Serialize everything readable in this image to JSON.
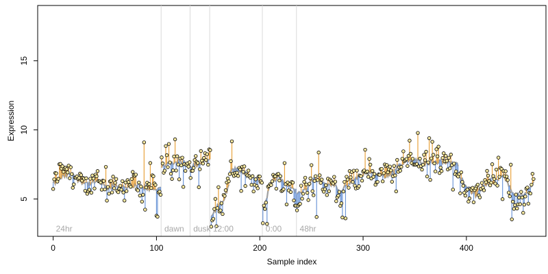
{
  "chart_data": {
    "type": "line",
    "title": "",
    "xlabel": "Sample index",
    "ylabel": "Expression",
    "xlim": [
      -15,
      477
    ],
    "ylim": [
      2.3,
      19.0
    ],
    "x_ticks": [
      0,
      100,
      200,
      300,
      400
    ],
    "y_ticks": [
      5,
      10,
      15
    ],
    "grid": false,
    "legend": "none",
    "colors": {
      "fit_line": "#a0a0a0",
      "residual_above": "#e8a33d",
      "residual_below": "#6f98d8",
      "point_fill": "#f6e8a0",
      "point_edge": "#000000",
      "divider": "#d9d9d9",
      "region_label": "#a8a8a8",
      "axis": "#000000"
    },
    "regions": [
      {
        "label": "24hr",
        "start": 0
      },
      {
        "label": "dawn",
        "start": 105
      },
      {
        "label": "dusk",
        "start": 133
      },
      {
        "label": "12:00",
        "start": 152
      },
      {
        "label": "0:00",
        "start": 203
      },
      {
        "label": "48hr",
        "start": 236
      }
    ],
    "segments": [
      {
        "x0": 0,
        "x1": 104,
        "fit": [
          6.1,
          6.6,
          6.8,
          6.3,
          6.1,
          6.3,
          5.8,
          6.0,
          5.9,
          6.0,
          5.9,
          5.7,
          5.7
        ],
        "obs": [
          6.0,
          7.5,
          7.0,
          6.2,
          5.9,
          6.8,
          5.4,
          6.2,
          5.5,
          6.5,
          5.3,
          6.2,
          5.1
        ]
      },
      {
        "x0": 105,
        "x1": 152,
        "fit": [
          7.4,
          7.6,
          7.8,
          7.3,
          7.6,
          7.9
        ],
        "obs": [
          7.6,
          7.4,
          8.1,
          7.0,
          7.9,
          8.2
        ]
      },
      {
        "x0": 153,
        "x1": 170,
        "fit": [
          3.9,
          4.4,
          4.8,
          6.0
        ],
        "obs": [
          3.5,
          4.2,
          4.6,
          6.4
        ]
      },
      {
        "x0": 171,
        "x1": 202,
        "fit": [
          7.0,
          7.2,
          6.8,
          6.5,
          6.2
        ],
        "obs": [
          7.2,
          7.0,
          6.6,
          6.0,
          6.8
        ]
      },
      {
        "x0": 203,
        "x1": 235,
        "fit": [
          4.2,
          6.2,
          6.6,
          6.0,
          5.6
        ],
        "obs": [
          3.8,
          6.6,
          6.3,
          6.2,
          5.2
        ]
      },
      {
        "x0": 236,
        "x1": 285,
        "fit": [
          5.3,
          5.6,
          6.3,
          6.5,
          5.9,
          6.2,
          5.5,
          6.0
        ],
        "obs": [
          4.8,
          6.0,
          6.0,
          6.8,
          5.6,
          6.4,
          5.1,
          6.4
        ]
      },
      {
        "x0": 286,
        "x1": 330,
        "fit": [
          6.1,
          6.6,
          6.9,
          6.8,
          6.7,
          6.9
        ],
        "obs": [
          6.4,
          6.4,
          7.1,
          6.6,
          6.9,
          6.8
        ]
      },
      {
        "x0": 331,
        "x1": 392,
        "fit": [
          7.2,
          7.7,
          7.8,
          7.6,
          7.7,
          7.6,
          7.5
        ],
        "obs": [
          7.4,
          7.9,
          7.6,
          7.8,
          7.5,
          7.8,
          7.3
        ]
      },
      {
        "x0": 393,
        "x1": 425,
        "fit": [
          6.8,
          5.8,
          5.3,
          6.0,
          6.4
        ],
        "obs": [
          6.6,
          5.5,
          5.1,
          6.2,
          6.7
        ]
      },
      {
        "x0": 426,
        "x1": 465,
        "fit": [
          6.2,
          6.7,
          5.3,
          5.2,
          6.2
        ],
        "obs": [
          6.5,
          6.9,
          4.9,
          4.8,
          6.4
        ]
      }
    ],
    "outliers": [
      {
        "x": 88,
        "y": 9.1
      },
      {
        "x": 153,
        "y": 3.0
      },
      {
        "x": 207,
        "y": 3.2
      },
      {
        "x": 224,
        "y": 7.6
      },
      {
        "x": 255,
        "y": 3.7
      },
      {
        "x": 283,
        "y": 3.6
      },
      {
        "x": 455,
        "y": 4.0
      },
      {
        "x": 371,
        "y": 8.6
      }
    ]
  }
}
